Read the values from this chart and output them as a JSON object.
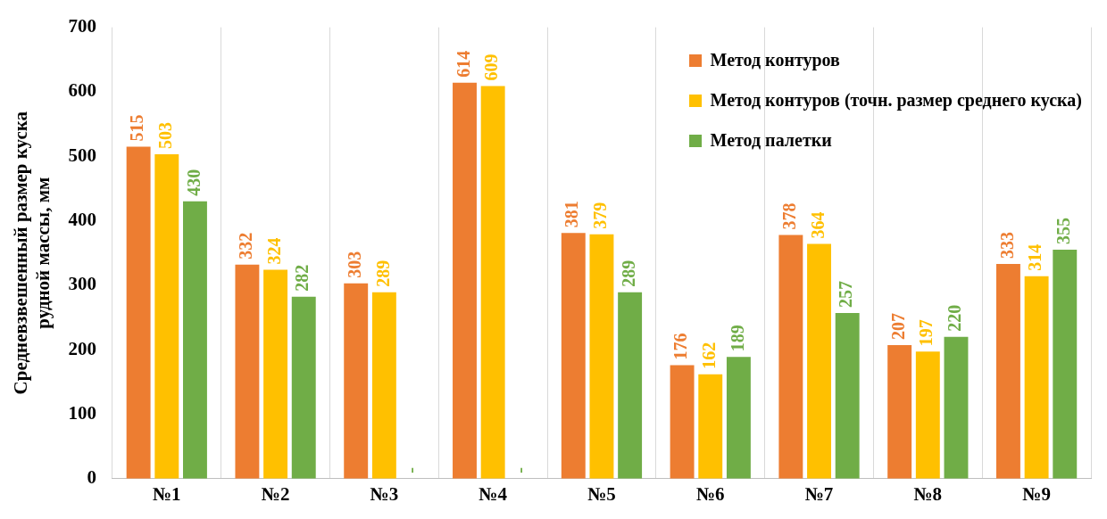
{
  "chart_data": {
    "type": "bar",
    "ylabel": "Средневзвешенный размер куска рудной массы, мм",
    "categories": [
      "№1",
      "№2",
      "№3",
      "№4",
      "№5",
      "№6",
      "№7",
      "№8",
      "№9"
    ],
    "series": [
      {
        "name": "Метод контуров",
        "color": "#ed7d31",
        "values": [
          515,
          332,
          303,
          614,
          381,
          176,
          378,
          207,
          333
        ],
        "value_labels": [
          "515",
          "332",
          "303",
          "614",
          "381",
          "176",
          "378",
          "207",
          "333"
        ]
      },
      {
        "name": "Метод контуров (точн. размер среднего куска)",
        "color": "#ffc000",
        "values": [
          503,
          324,
          289,
          609,
          379,
          162,
          364,
          197,
          314
        ],
        "value_labels": [
          "503",
          "324",
          "289",
          "609",
          "379",
          "162",
          "364",
          "197",
          "314"
        ]
      },
      {
        "name": "Метод палетки",
        "color": "#70ad47",
        "values": [
          430,
          282,
          null,
          null,
          289,
          189,
          257,
          220,
          355
        ],
        "value_labels": [
          "430",
          "282",
          "-",
          "-",
          "289",
          "189",
          "257",
          "220",
          "355"
        ]
      }
    ],
    "ylim": [
      0,
      700
    ],
    "yticks": [
      0,
      100,
      200,
      300,
      400,
      500,
      600,
      700
    ],
    "grid": "x",
    "legend": "top right"
  }
}
